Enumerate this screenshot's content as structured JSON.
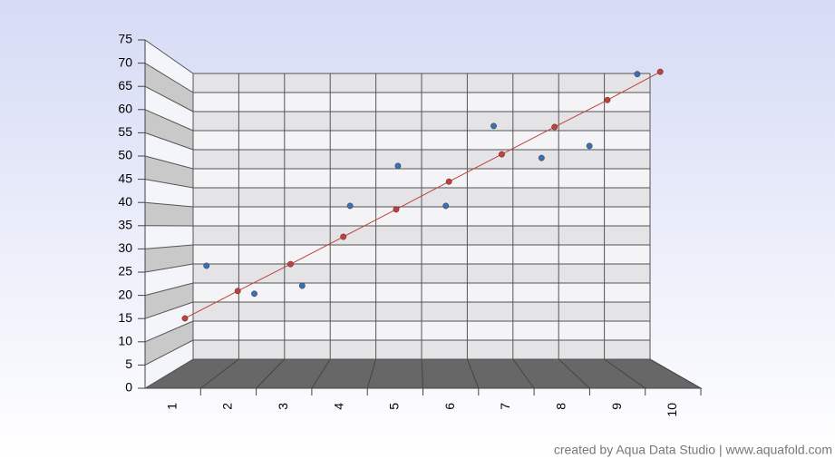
{
  "chart_data": {
    "type": "scatter",
    "categories": [
      "1",
      "2",
      "3",
      "4",
      "5",
      "6",
      "7",
      "8",
      "9",
      "10"
    ],
    "series": [
      {
        "color": "#3a6fb0",
        "values": [
          25,
          18,
          20,
          40,
          50,
          40,
          60,
          52,
          55,
          73
        ]
      },
      {
        "type": "line",
        "color": "#c0403c",
        "values": [
          14.0,
          20.2,
          26.3,
          32.5,
          38.7,
          45.0,
          51.2,
          57.4,
          63.5,
          69.9
        ]
      }
    ],
    "ylim": [
      0,
      75
    ],
    "yticks": [
      0,
      5,
      10,
      15,
      20,
      25,
      30,
      35,
      40,
      45,
      50,
      55,
      60,
      65,
      70,
      75
    ],
    "grid": true,
    "credit": "created by Aqua Data Studio | www.aquafold.com"
  }
}
